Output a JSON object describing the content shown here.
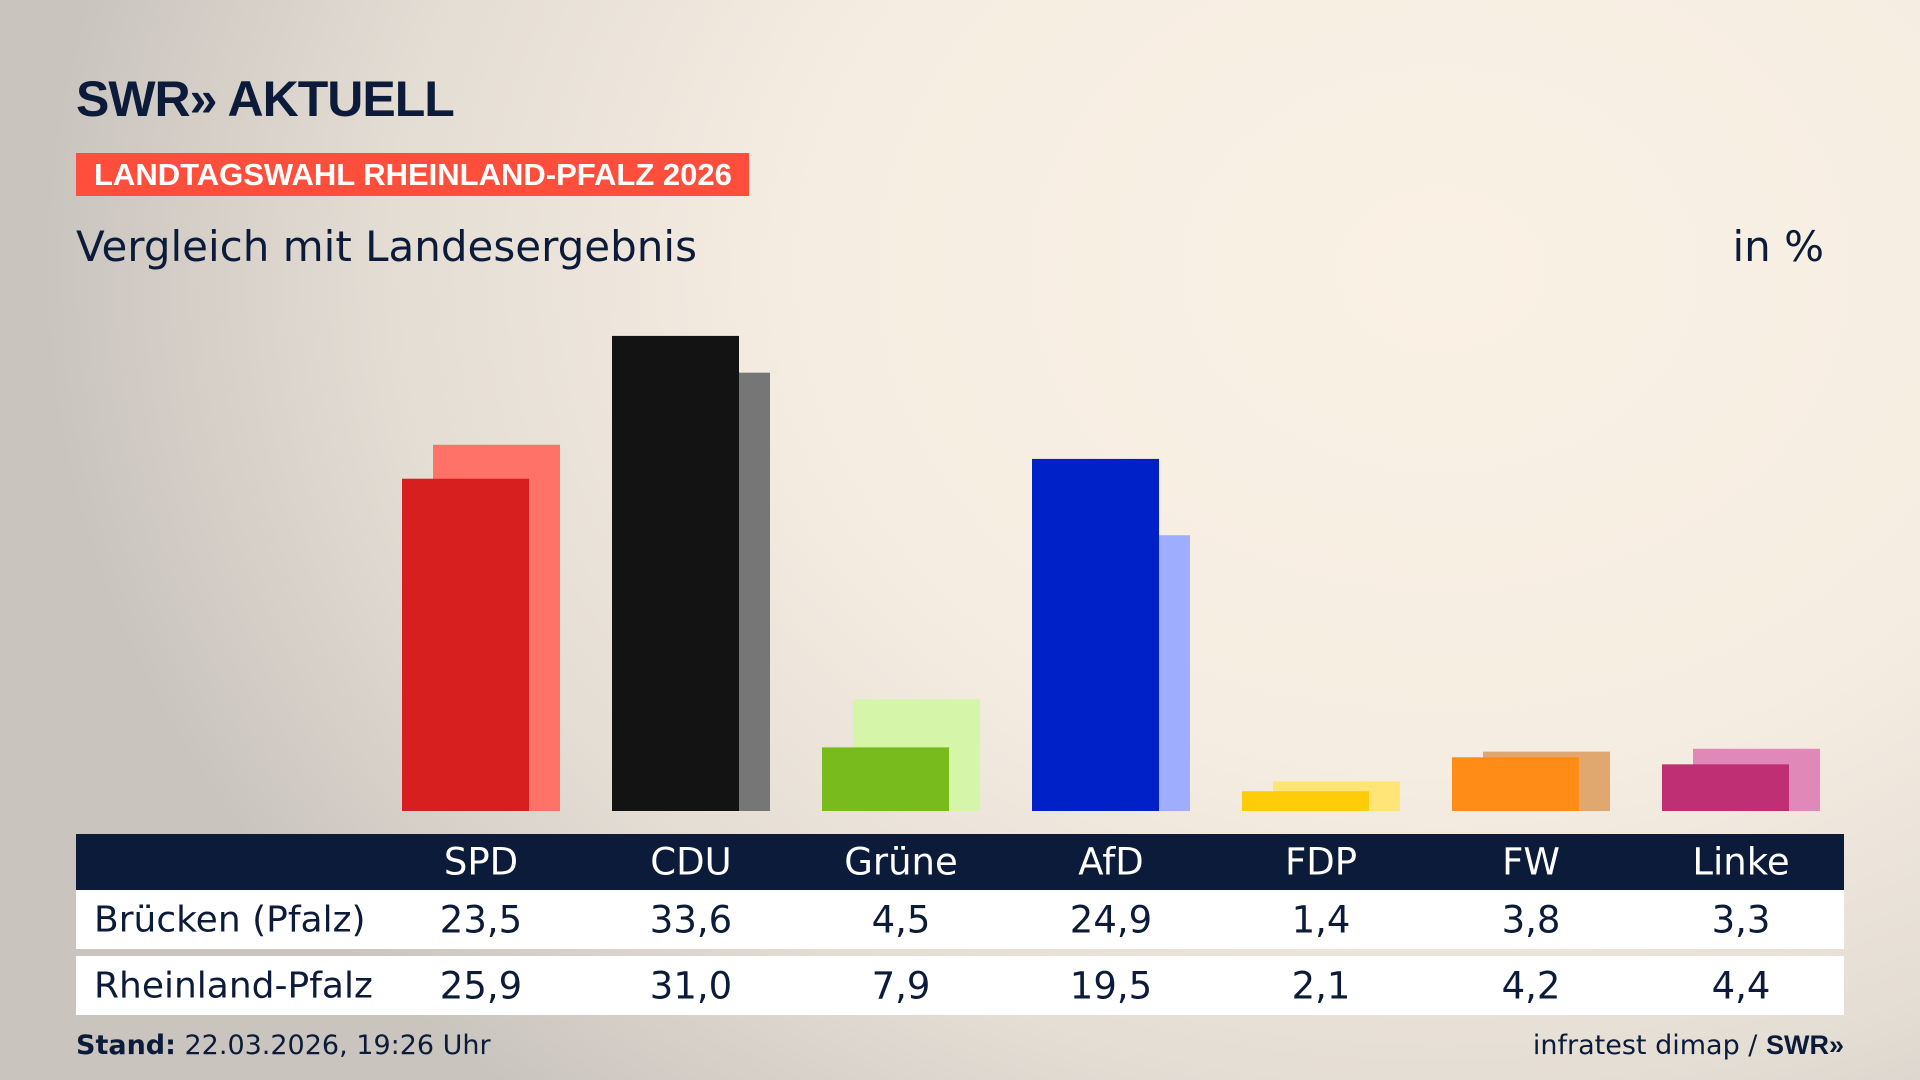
{
  "brand": {
    "logo": "SWR» AKTUELL",
    "footer_logo": "SWR»"
  },
  "banner": "LANDTAGSWAHL RHEINLAND-PFALZ 2026",
  "subtitle": "Vergleich mit Landesergebnis",
  "unit": "in %",
  "footer": {
    "stand_label": "Stand:",
    "stand_value": " 22.03.2026, 19:26 Uhr",
    "source": "infratest dimap / "
  },
  "chart_data": {
    "type": "bar",
    "categories": [
      "SPD",
      "CDU",
      "Grüne",
      "AfD",
      "FDP",
      "FW",
      "Linke"
    ],
    "series": [
      {
        "name": "Brücken (Pfalz)",
        "values": [
          23.5,
          33.6,
          4.5,
          24.9,
          1.4,
          3.8,
          3.3
        ],
        "colors": [
          "#d81f1f",
          "#131313",
          "#77bb1c",
          "#0021c8",
          "#ffcc0a",
          "#ff8c17",
          "#be2f73"
        ]
      },
      {
        "name": "Rheinland-Pfalz",
        "values": [
          25.9,
          31.0,
          7.9,
          19.5,
          2.1,
          4.2,
          4.4
        ],
        "colors": [
          "#ff7268",
          "#767676",
          "#d5f5a8",
          "#9fadff",
          "#ffe477",
          "#e0a86f",
          "#e088b8"
        ]
      }
    ],
    "display_values": [
      [
        "23,5",
        "33,6",
        "4,5",
        "24,9",
        "1,4",
        "3,8",
        "3,3"
      ],
      [
        "25,9",
        "31,0",
        "7,9",
        "19,5",
        "2,1",
        "4,2",
        "4,4"
      ]
    ]
  }
}
